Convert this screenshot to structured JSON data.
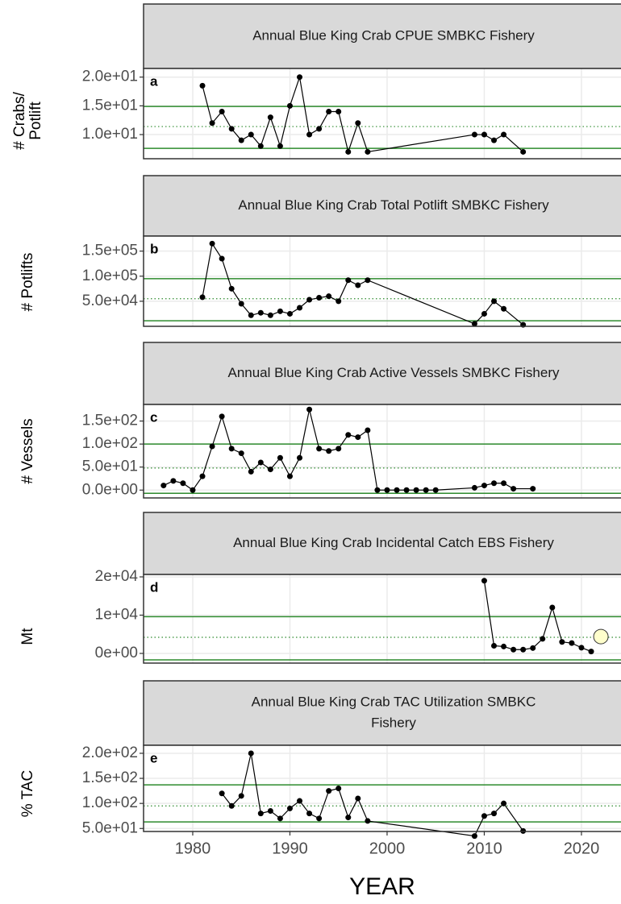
{
  "chart_data": [
    {
      "type": "line",
      "title": [
        "Annual Blue King Crab CPUE SMBKC Fishery"
      ],
      "letter": "a",
      "ylabel": [
        "# Crabs/",
        "Potlift"
      ],
      "x": [
        1981,
        1982,
        1983,
        1984,
        1985,
        1986,
        1987,
        1988,
        1989,
        1990,
        1991,
        1992,
        1993,
        1994,
        1995,
        1996,
        1997,
        1998,
        2009,
        2010,
        2011,
        2012,
        2014
      ],
      "series": [
        {
          "color": "#000000",
          "values": [
            18.5,
            12,
            14,
            11,
            9,
            10,
            8,
            13,
            8,
            15,
            20,
            10,
            11,
            14,
            14,
            7,
            12,
            7,
            10,
            10,
            9,
            10,
            7
          ]
        }
      ],
      "xlim": [
        1974.94,
        2024.07
      ],
      "xticks": [
        1980,
        1990,
        2000,
        2010,
        2020
      ],
      "ylim": [
        5.8,
        21.5
      ],
      "yticks": [
        {
          "value": 10,
          "label": "1.0e+01"
        },
        {
          "value": 15,
          "label": "1.5e+01"
        },
        {
          "value": 20,
          "label": "2.0e+01"
        }
      ],
      "hlines": [
        {
          "value": 14.9,
          "style": "solid"
        },
        {
          "value": 7.6,
          "style": "solid"
        },
        {
          "value": 11.4,
          "style": "dotted"
        }
      ],
      "hline_color": "#2e8b2e",
      "grid": true
    },
    {
      "type": "line",
      "title": [
        "Annual Blue King Crab Total Potlift SMBKC Fishery"
      ],
      "letter": "b",
      "ylabel": [
        "# Potlifts"
      ],
      "x": [
        1981,
        1982,
        1983,
        1984,
        1985,
        1986,
        1987,
        1988,
        1989,
        1990,
        1991,
        1992,
        1993,
        1994,
        1995,
        1996,
        1997,
        1998,
        2009,
        2010,
        2011,
        2012,
        2014
      ],
      "series": [
        {
          "color": "#000000",
          "values": [
            58000,
            165000,
            135000,
            75000,
            45000,
            22000,
            27000,
            22000,
            30000,
            25000,
            37000,
            53000,
            57000,
            60000,
            50000,
            92000,
            82000,
            92000,
            5000,
            25000,
            50000,
            35000,
            3000
          ]
        }
      ],
      "xlim": [
        1974.94,
        2024.07
      ],
      "xticks": [
        1980,
        1990,
        2000,
        2010,
        2020
      ],
      "ylim": [
        0,
        180000
      ],
      "yticks": [
        {
          "value": 50000,
          "label": "5.0e+04"
        },
        {
          "value": 100000,
          "label": "1.0e+05"
        },
        {
          "value": 150000,
          "label": "1.5e+05"
        }
      ],
      "hlines": [
        {
          "value": 95000,
          "style": "solid"
        },
        {
          "value": 11000,
          "style": "solid"
        },
        {
          "value": 55000,
          "style": "dotted"
        }
      ],
      "hline_color": "#2e8b2e",
      "grid": true
    },
    {
      "type": "line",
      "title": [
        "Annual Blue King Crab Active Vessels SMBKC Fishery"
      ],
      "letter": "c",
      "ylabel": [
        "# Vessels"
      ],
      "x": [
        1977,
        1978,
        1979,
        1980,
        1981,
        1982,
        1983,
        1984,
        1985,
        1986,
        1987,
        1988,
        1989,
        1990,
        1991,
        1992,
        1993,
        1994,
        1995,
        1996,
        1997,
        1998,
        1999,
        2000,
        2001,
        2002,
        2003,
        2004,
        2005,
        2009,
        2010,
        2011,
        2012,
        2013,
        2015
      ],
      "series": [
        {
          "color": "#000000",
          "values": [
            10,
            20,
            15,
            0,
            30,
            95,
            160,
            90,
            80,
            40,
            60,
            45,
            70,
            30,
            70,
            175,
            90,
            85,
            90,
            120,
            115,
            130,
            0,
            0,
            0,
            0,
            0,
            0,
            0,
            5,
            10,
            15,
            15,
            3,
            3
          ]
        }
      ],
      "xlim": [
        1974.94,
        2024.07
      ],
      "xticks": [
        1980,
        1990,
        2000,
        2010,
        2020
      ],
      "ylim": [
        -17,
        186
      ],
      "yticks": [
        {
          "value": 0,
          "label": "0.0e+00"
        },
        {
          "value": 50,
          "label": "5.0e+01"
        },
        {
          "value": 100,
          "label": "1.0e+02"
        },
        {
          "value": 150,
          "label": "1.5e+02"
        }
      ],
      "hlines": [
        {
          "value": 100,
          "style": "solid"
        },
        {
          "value": -7,
          "style": "solid"
        },
        {
          "value": 48,
          "style": "dotted"
        }
      ],
      "hline_color": "#2e8b2e",
      "grid": true
    },
    {
      "type": "line",
      "title": [
        "Annual Blue King Crab Incidental Catch EBS Fishery"
      ],
      "letter": "d",
      "ylabel": [
        "Mt"
      ],
      "x": [
        2010,
        2011,
        2012,
        2013,
        2014,
        2015,
        2016,
        2017,
        2018,
        2019,
        2020,
        2021,
        2022
      ],
      "series": [
        {
          "color": "#000000",
          "values": [
            19000,
            2000,
            1800,
            1000,
            1000,
            1400,
            3800,
            12000,
            3000,
            2700,
            1500,
            500,
            null
          ]
        },
        {
          "color": "#ffffcc",
          "style": "highlight",
          "values": [
            null,
            null,
            null,
            null,
            null,
            null,
            null,
            null,
            null,
            null,
            null,
            null,
            4400
          ]
        }
      ],
      "xlim": [
        1974.94,
        2024.07
      ],
      "xticks": [
        1980,
        1990,
        2000,
        2010,
        2020
      ],
      "ylim": [
        -2530,
        20630
      ],
      "yticks": [
        {
          "value": 0,
          "label": "0e+00"
        },
        {
          "value": 10000,
          "label": "1e+04"
        },
        {
          "value": 20000,
          "label": "2e+04"
        }
      ],
      "hlines": [
        {
          "value": 9600,
          "style": "solid"
        },
        {
          "value": -1700,
          "style": "solid"
        },
        {
          "value": 4200,
          "style": "dotted"
        }
      ],
      "hline_color": "#2e8b2e",
      "grid": true
    },
    {
      "type": "line",
      "title": [
        "Annual Blue King Crab TAC Utilization SMBKC",
        "Fishery"
      ],
      "letter": "e",
      "ylabel": [
        "% TAC"
      ],
      "xlabel": "YEAR",
      "x": [
        1983,
        1984,
        1985,
        1986,
        1987,
        1988,
        1989,
        1990,
        1991,
        1992,
        1993,
        1994,
        1995,
        1996,
        1997,
        1998,
        2009,
        2010,
        2011,
        2012,
        2014
      ],
      "series": [
        {
          "color": "#000000",
          "values": [
            120,
            95,
            115,
            200,
            80,
            85,
            70,
            90,
            105,
            80,
            70,
            125,
            130,
            72,
            110,
            65,
            35,
            75,
            80,
            100,
            45
          ]
        }
      ],
      "xlim": [
        1974.94,
        2024.07
      ],
      "xticks": [
        1980,
        1990,
        2000,
        2010,
        2020
      ],
      "ylim": [
        44,
        216
      ],
      "yticks": [
        {
          "value": 50,
          "label": "5.0e+01"
        },
        {
          "value": 100,
          "label": "1.0e+02"
        },
        {
          "value": 150,
          "label": "1.5e+02"
        },
        {
          "value": 200,
          "label": "2.0e+02"
        }
      ],
      "hlines": [
        {
          "value": 137,
          "style": "solid"
        },
        {
          "value": 63,
          "style": "solid"
        },
        {
          "value": 95,
          "style": "dotted"
        }
      ],
      "hline_color": "#2e8b2e",
      "grid": true
    }
  ]
}
